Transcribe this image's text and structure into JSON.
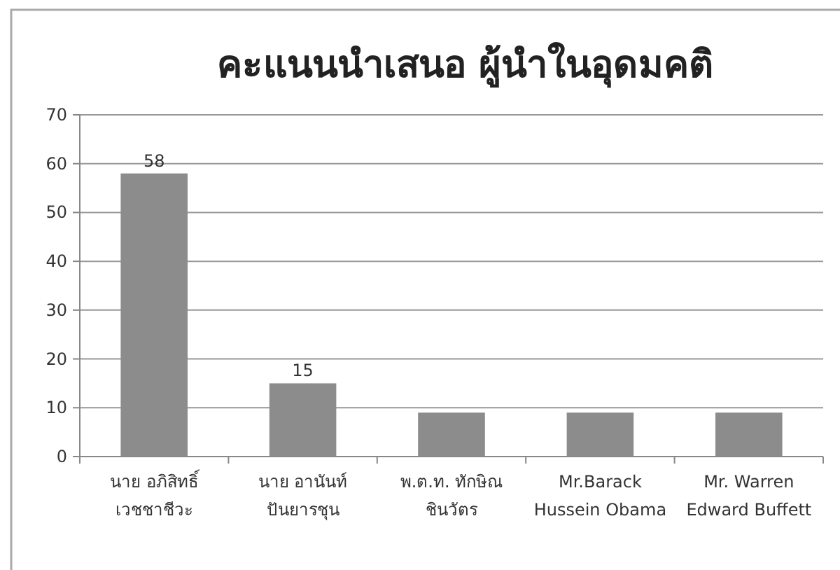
{
  "chart_data": {
    "type": "bar",
    "title": "คะแนนนำเสนอ ผู้นำในอุดมคติ",
    "categories": [
      "นาย อภิสิทธิ์\nเวชชาชีวะ",
      "นาย อานันท์\nปันยารชุน",
      "พ.ต.ท. ทักษิณ\nชินวัตร",
      "Mr.Barack\nHussein Obama",
      "Mr. Warren\nEdward Buffett"
    ],
    "values": [
      58,
      15,
      9,
      9,
      9
    ],
    "value_labels": [
      "58",
      "15",
      null,
      null,
      null
    ],
    "color": "#8c8c8c",
    "ylim": [
      0,
      70
    ],
    "yticks": [
      0,
      10,
      20,
      30,
      40,
      50,
      60,
      70
    ],
    "grid": "y"
  }
}
